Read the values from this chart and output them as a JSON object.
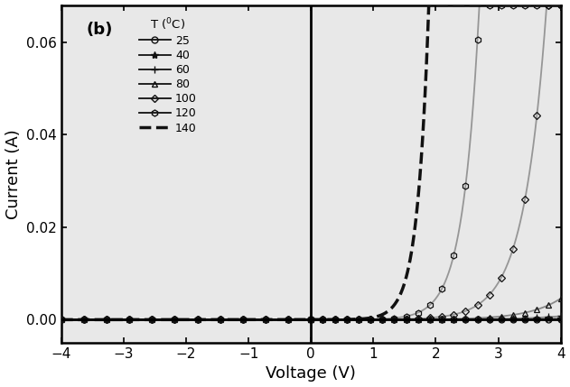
{
  "title": "(b)",
  "xlabel": "Voltage (V)",
  "ylabel": "Current (A)",
  "xlim": [
    -4,
    4
  ],
  "ylim": [
    -0.005,
    0.068
  ],
  "yticks": [
    0.0,
    0.02,
    0.04,
    0.06
  ],
  "xticks": [
    -4,
    -3,
    -2,
    -1,
    0,
    1,
    2,
    3,
    4
  ],
  "background_color": "#e8e8e8",
  "diode_params": [
    {
      "I0": 2e-06,
      "n": 38.0,
      "Rs": 35.0,
      "color": "#111111",
      "marker": "o",
      "markersize": 5,
      "label": "25",
      "linestyle": "-",
      "linewidth": 1.3,
      "line_color": "#777777"
    },
    {
      "I0": 2e-06,
      "n": 32.0,
      "Rs": 28.0,
      "color": "#111111",
      "marker": "*",
      "markersize": 6,
      "label": "40",
      "linestyle": "-",
      "linewidth": 1.3,
      "line_color": "#777777"
    },
    {
      "I0": 2e-06,
      "n": 26.0,
      "Rs": 22.0,
      "color": "#111111",
      "marker": "+",
      "markersize": 6,
      "label": "60",
      "linestyle": "-",
      "linewidth": 1.3,
      "line_color": "#777777"
    },
    {
      "I0": 2e-06,
      "n": 20.0,
      "Rs": 17.0,
      "color": "#111111",
      "marker": "^",
      "markersize": 5,
      "label": "80",
      "linestyle": "-",
      "linewidth": 1.3,
      "line_color": "#777777"
    },
    {
      "I0": 2e-06,
      "n": 14.0,
      "Rs": 12.0,
      "color": "#111111",
      "marker": "D",
      "markersize": 4,
      "label": "100",
      "linestyle": "-",
      "linewidth": 1.3,
      "line_color": "#888888"
    },
    {
      "I0": 2e-06,
      "n": 10.0,
      "Rs": 8.0,
      "color": "#111111",
      "marker": "h",
      "markersize": 5,
      "label": "120",
      "linestyle": "-",
      "linewidth": 1.3,
      "line_color": "#888888"
    },
    {
      "I0": 2e-06,
      "n": 7.0,
      "Rs": 4.0,
      "color": "#111111",
      "marker": "None",
      "markersize": 0,
      "label": "140",
      "linestyle": "--",
      "linewidth": 2.5,
      "line_color": "#111111"
    }
  ]
}
